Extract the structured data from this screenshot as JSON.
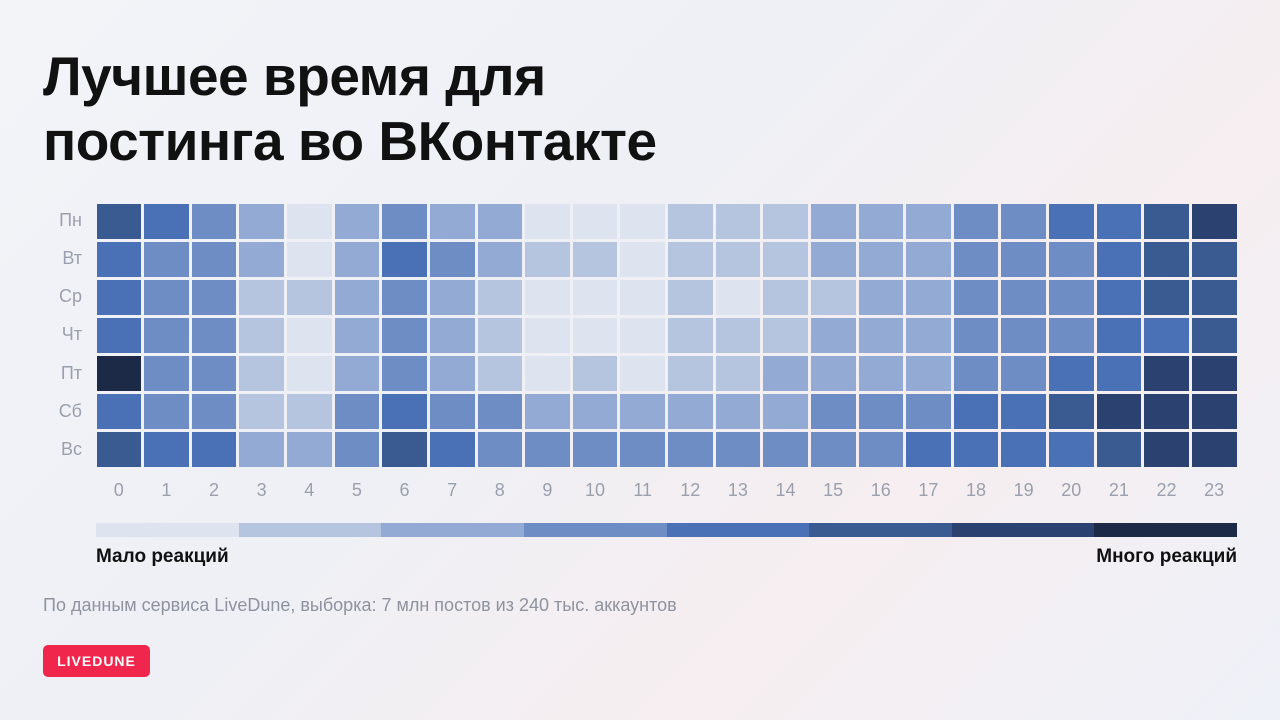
{
  "title_line1": "Лучшее время для",
  "title_line2": "постинга во ВКонтакте",
  "note": "По данным сервиса LiveDune, выборка: 7 млн постов из 240 тыс. аккаунтов",
  "logo": "LIVEDUNE",
  "chart_data": {
    "type": "heatmap",
    "rows": [
      "Пн",
      "Вт",
      "Ср",
      "Чт",
      "Пт",
      "Сб",
      "Вс"
    ],
    "columns": [
      "0",
      "1",
      "2",
      "3",
      "4",
      "5",
      "6",
      "7",
      "8",
      "9",
      "10",
      "11",
      "12",
      "13",
      "14",
      "15",
      "16",
      "17",
      "18",
      "19",
      "20",
      "21",
      "22",
      "23"
    ],
    "scale_levels": 8,
    "values": [
      [
        6,
        5,
        4,
        3,
        1,
        3,
        4,
        3,
        3,
        1,
        1,
        1,
        2,
        2,
        2,
        3,
        3,
        3,
        4,
        4,
        5,
        5,
        6,
        7
      ],
      [
        5,
        4,
        4,
        3,
        1,
        3,
        5,
        4,
        3,
        2,
        2,
        1,
        2,
        2,
        2,
        3,
        3,
        3,
        4,
        4,
        4,
        5,
        6,
        6
      ],
      [
        5,
        4,
        4,
        2,
        2,
        3,
        4,
        3,
        2,
        1,
        1,
        1,
        2,
        1,
        2,
        2,
        3,
        3,
        4,
        4,
        4,
        5,
        6,
        6
      ],
      [
        5,
        4,
        4,
        2,
        1,
        3,
        4,
        3,
        2,
        1,
        1,
        1,
        2,
        2,
        2,
        3,
        3,
        3,
        4,
        4,
        4,
        5,
        5,
        6
      ],
      [
        8,
        4,
        4,
        2,
        1,
        3,
        4,
        3,
        2,
        1,
        2,
        1,
        2,
        2,
        3,
        3,
        3,
        3,
        4,
        4,
        5,
        5,
        7,
        7
      ],
      [
        5,
        4,
        4,
        2,
        2,
        4,
        5,
        4,
        4,
        3,
        3,
        3,
        3,
        3,
        3,
        4,
        4,
        4,
        5,
        5,
        6,
        7,
        7,
        7
      ],
      [
        6,
        5,
        5,
        3,
        3,
        4,
        6,
        5,
        4,
        4,
        4,
        4,
        4,
        4,
        4,
        4,
        4,
        5,
        5,
        5,
        5,
        6,
        7,
        7
      ]
    ],
    "colors": [
      "#dde3ef",
      "#b5c5e0",
      "#93aad4",
      "#6e8dc4",
      "#4a70b5",
      "#3a5a92",
      "#2b4270",
      "#1d2a47"
    ],
    "legend_low": "Мало реакций",
    "legend_high": "Много реакций"
  }
}
